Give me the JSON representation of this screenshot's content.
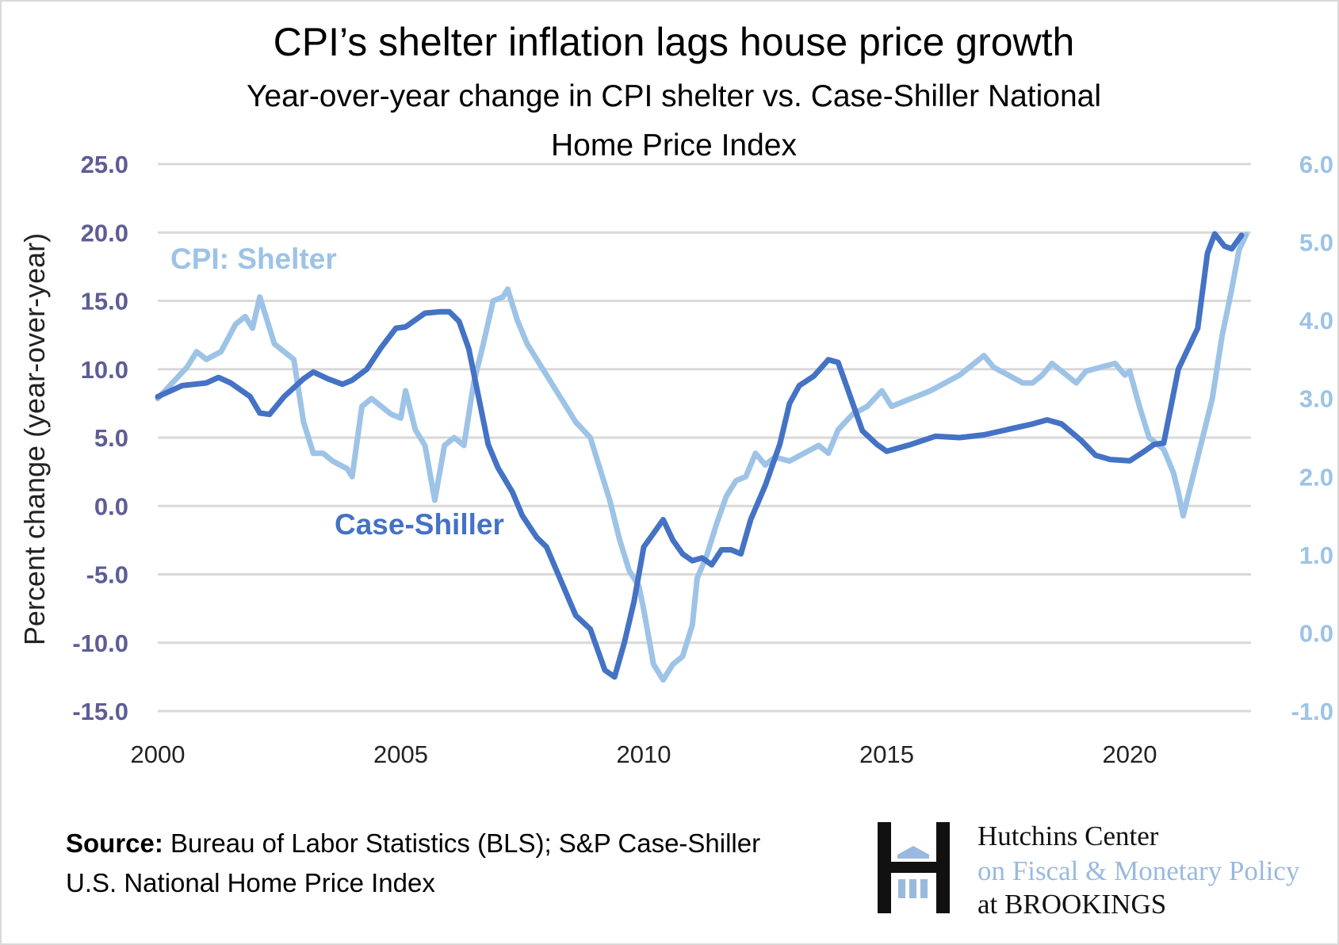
{
  "chart_data": {
    "type": "line",
    "title": "CPI’s shelter inflation lags house price growth",
    "subtitle_lines": [
      "Year-over-year change in CPI shelter vs. Case-Shiller National",
      "Home Price Index"
    ],
    "ylabel": "Percent change (year-over-year)",
    "ylim": [
      -15,
      25
    ],
    "y_ticks": [
      "25.0",
      "20.0",
      "15.0",
      "10.0",
      "5.0",
      "0.0",
      "-5.0",
      "-10.0",
      "-15.0"
    ],
    "y2lim": [
      -1,
      6
    ],
    "y2_ticks": [
      "6.0",
      "5.0",
      "4.0",
      "3.0",
      "2.0",
      "1.0",
      "0.0",
      "-1.0"
    ],
    "xlim": [
      2000,
      2022.4
    ],
    "x_ticks": [
      "2000",
      "2005",
      "2010",
      "2015",
      "2020"
    ],
    "grid": true,
    "colors": {
      "case_shiller": "#4472c4",
      "cpi_shelter": "#9dc3e6",
      "left_ticks": "#5d5d96"
    },
    "series": [
      {
        "name": "Case-Shiller",
        "axis": "left",
        "x": [
          2000.0,
          2000.5,
          2001.0,
          2001.25,
          2001.5,
          2001.9,
          2002.1,
          2002.3,
          2002.6,
          2003.0,
          2003.2,
          2003.5,
          2003.8,
          2004.0,
          2004.3,
          2004.6,
          2004.9,
          2005.1,
          2005.5,
          2005.8,
          2006.0,
          2006.2,
          2006.4,
          2006.6,
          2006.8,
          2007.0,
          2007.3,
          2007.5,
          2007.8,
          2008.0,
          2008.3,
          2008.6,
          2008.9,
          2009.0,
          2009.2,
          2009.4,
          2009.6,
          2009.8,
          2010.0,
          2010.2,
          2010.4,
          2010.6,
          2010.8,
          2011.0,
          2011.2,
          2011.4,
          2011.6,
          2011.8,
          2012.0,
          2012.2,
          2012.5,
          2012.8,
          2013.0,
          2013.2,
          2013.5,
          2013.8,
          2014.0,
          2014.2,
          2014.5,
          2014.8,
          2015.0,
          2015.5,
          2016.0,
          2016.5,
          2017.0,
          2017.5,
          2018.0,
          2018.3,
          2018.6,
          2019.0,
          2019.3,
          2019.6,
          2020.0,
          2020.3,
          2020.5,
          2020.7,
          2021.0,
          2021.4,
          2021.6,
          2021.75,
          2021.95,
          2022.1,
          2022.3
        ],
        "values": [
          8.0,
          8.8,
          9.0,
          9.4,
          9.0,
          8.0,
          6.8,
          6.7,
          8.0,
          9.3,
          9.8,
          9.3,
          8.9,
          9.2,
          10.0,
          11.6,
          13.0,
          13.1,
          14.1,
          14.2,
          14.2,
          13.5,
          11.5,
          8.0,
          4.5,
          2.8,
          1.0,
          -0.7,
          -2.3,
          -3.0,
          -5.5,
          -8.0,
          -9.0,
          -10.0,
          -12.0,
          -12.5,
          -10.0,
          -7.0,
          -3.0,
          -2.0,
          -1.0,
          -2.5,
          -3.5,
          -4.0,
          -3.8,
          -4.3,
          -3.2,
          -3.2,
          -3.5,
          -1.0,
          1.5,
          4.5,
          7.5,
          8.8,
          9.5,
          10.7,
          10.5,
          8.5,
          5.5,
          4.5,
          4.0,
          4.5,
          5.1,
          5.0,
          5.2,
          5.6,
          6.0,
          6.3,
          6.0,
          4.8,
          3.7,
          3.4,
          3.3,
          4.0,
          4.5,
          4.6,
          10.0,
          13.0,
          18.5,
          19.9,
          19.0,
          18.8,
          19.8
        ]
      },
      {
        "name": "CPI: Shelter",
        "axis": "right",
        "x": [
          2000.0,
          2000.3,
          2000.6,
          2000.8,
          2001.0,
          2001.3,
          2001.6,
          2001.8,
          2001.95,
          2002.1,
          2002.2,
          2002.4,
          2002.6,
          2002.8,
          2003.0,
          2003.2,
          2003.4,
          2003.6,
          2003.9,
          2004.0,
          2004.2,
          2004.4,
          2004.6,
          2004.8,
          2005.0,
          2005.1,
          2005.3,
          2005.5,
          2005.7,
          2005.9,
          2006.1,
          2006.3,
          2006.5,
          2006.7,
          2006.9,
          2007.1,
          2007.2,
          2007.4,
          2007.6,
          2007.8,
          2008.0,
          2008.3,
          2008.6,
          2008.9,
          2009.1,
          2009.3,
          2009.5,
          2009.7,
          2009.9,
          2010.0,
          2010.2,
          2010.4,
          2010.6,
          2010.8,
          2011.0,
          2011.1,
          2011.3,
          2011.5,
          2011.7,
          2011.9,
          2012.1,
          2012.3,
          2012.5,
          2012.7,
          2013.0,
          2013.3,
          2013.6,
          2013.8,
          2014.0,
          2014.3,
          2014.6,
          2014.9,
          2015.1,
          2015.5,
          2015.9,
          2016.2,
          2016.5,
          2016.8,
          2017.0,
          2017.2,
          2017.5,
          2017.8,
          2018.0,
          2018.2,
          2018.4,
          2018.6,
          2018.9,
          2019.1,
          2019.4,
          2019.7,
          2019.9,
          2020.0,
          2020.2,
          2020.4,
          2020.7,
          2020.9,
          2021.0,
          2021.1,
          2021.3,
          2021.5,
          2021.7,
          2021.9,
          2022.1,
          2022.25,
          2022.4
        ],
        "values": [
          3.0,
          3.2,
          3.4,
          3.6,
          3.5,
          3.6,
          3.95,
          4.05,
          3.9,
          4.3,
          4.1,
          3.7,
          3.6,
          3.5,
          2.7,
          2.3,
          2.3,
          2.2,
          2.1,
          2.0,
          2.9,
          3.0,
          2.9,
          2.8,
          2.75,
          3.1,
          2.6,
          2.4,
          1.7,
          2.4,
          2.5,
          2.4,
          3.2,
          3.7,
          4.25,
          4.3,
          4.4,
          4.0,
          3.7,
          3.5,
          3.3,
          3.0,
          2.7,
          2.5,
          2.1,
          1.7,
          1.2,
          0.8,
          0.6,
          0.3,
          -0.4,
          -0.6,
          -0.4,
          -0.3,
          0.1,
          0.7,
          1.0,
          1.4,
          1.75,
          1.95,
          2.0,
          2.3,
          2.15,
          2.25,
          2.2,
          2.3,
          2.4,
          2.3,
          2.6,
          2.8,
          2.9,
          3.1,
          2.9,
          3.0,
          3.1,
          3.2,
          3.3,
          3.45,
          3.55,
          3.4,
          3.3,
          3.2,
          3.2,
          3.3,
          3.45,
          3.35,
          3.2,
          3.35,
          3.4,
          3.45,
          3.3,
          3.35,
          2.9,
          2.5,
          2.35,
          2.05,
          1.8,
          1.5,
          2.0,
          2.5,
          3.0,
          3.8,
          4.4,
          4.9,
          5.1
        ]
      }
    ],
    "annotations": [
      "CPI: Shelter",
      "Case-Shiller"
    ]
  },
  "source": {
    "label": "Source:",
    "text_line1": " Bureau of Labor Statistics (BLS); S&P Case-Shiller",
    "text_line2": "U.S. National Home Price Index"
  },
  "logo": {
    "line1": "Hutchins Center",
    "line2": "on Fiscal & Monetary Policy",
    "line3": "at BROOKINGS"
  }
}
